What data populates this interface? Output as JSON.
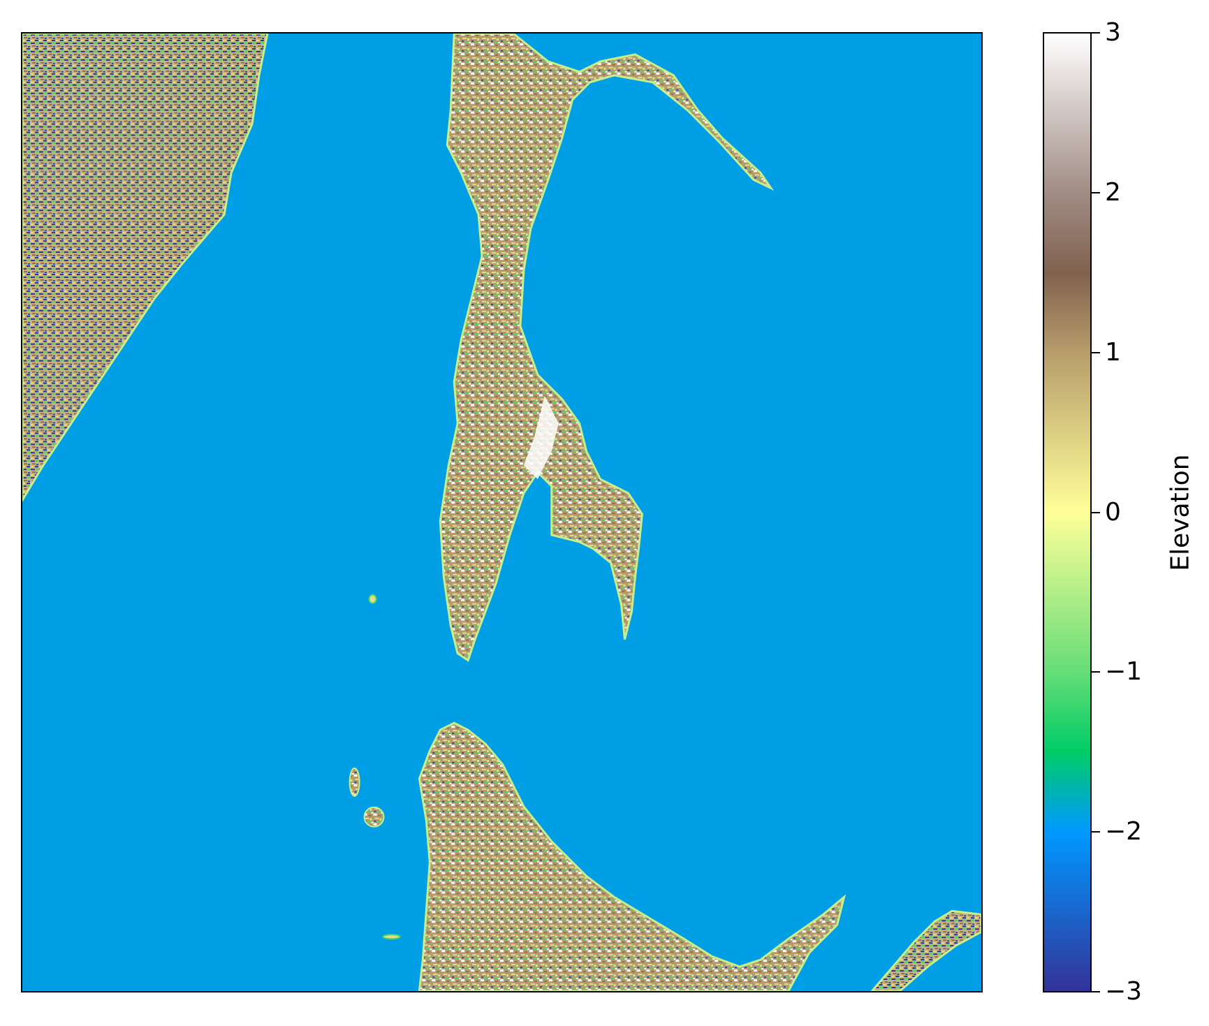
{
  "map": {
    "water_color": "#009fe5",
    "land_colors": [
      "#ffffff",
      "#8c6e58",
      "#b59a6c",
      "#e5dc8c",
      "#c8ed8c",
      "#4fd56a",
      "#1d4ab0",
      "#2e2f8f"
    ]
  },
  "colorbar": {
    "label": "Elevation",
    "min": -3,
    "max": 3,
    "colormap": "terrain",
    "ticks": [
      {
        "value": 3,
        "label": "3"
      },
      {
        "value": 2,
        "label": "2"
      },
      {
        "value": 1,
        "label": "1"
      },
      {
        "value": 0,
        "label": "0"
      },
      {
        "value": -1,
        "label": "−1"
      },
      {
        "value": -2,
        "label": "−2"
      },
      {
        "value": -3,
        "label": "−3"
      }
    ],
    "gradient_stops": [
      {
        "value": -3,
        "color": "#333399"
      },
      {
        "value": -2,
        "color": "#0099ff"
      },
      {
        "value": -1.5,
        "color": "#00cc66"
      },
      {
        "value": -1,
        "color": "#66dd77"
      },
      {
        "value": 0,
        "color": "#ffff99"
      },
      {
        "value": 1,
        "color": "#b79d6b"
      },
      {
        "value": 1.5,
        "color": "#80624f"
      },
      {
        "value": 2,
        "color": "#a08c84"
      },
      {
        "value": 3,
        "color": "#ffffff"
      }
    ]
  }
}
